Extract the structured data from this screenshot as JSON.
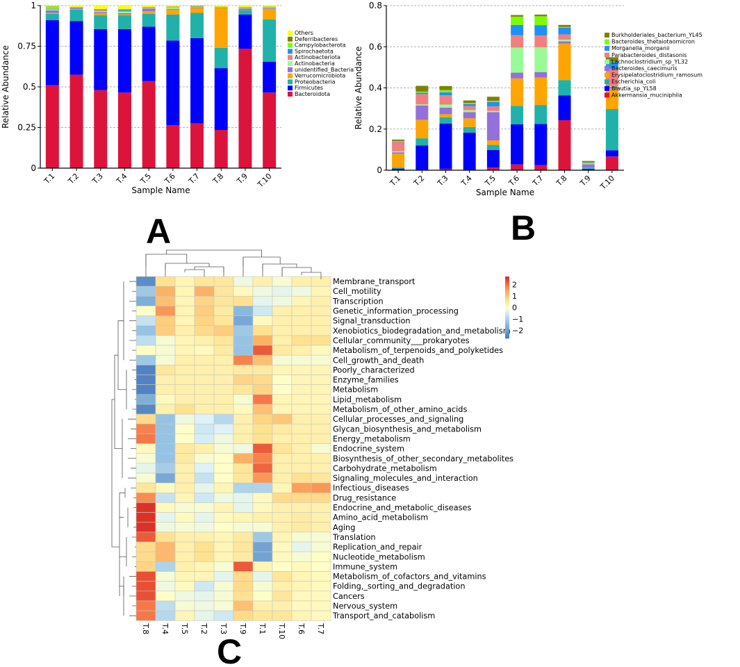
{
  "panels": {
    "a": "A",
    "b": "B",
    "c": "C"
  },
  "chart_data": [
    {
      "type": "bar",
      "stacked": true,
      "xlabel": "Sample Name",
      "ylabel": "Relative Abundance",
      "ylim": [
        0,
        1
      ],
      "yticks": [
        0,
        0.25,
        0.5,
        0.75,
        1
      ],
      "ytick_labels": [
        "0",
        "0.25",
        "0.5",
        "0.75",
        "1"
      ],
      "grid": "dashed horizontal",
      "legend_position": "right",
      "categories": [
        "T.1",
        "T.2",
        "T.3",
        "T.4",
        "T.5",
        "T.6",
        "T.7",
        "T.8",
        "T.9",
        "T.10"
      ],
      "series": [
        {
          "name": "Bacteroidota",
          "color": "#dc143c",
          "values": [
            0.51,
            0.575,
            0.48,
            0.465,
            0.535,
            0.265,
            0.275,
            0.235,
            0.735,
            0.465
          ]
        },
        {
          "name": "Firmicutes",
          "color": "#0000ff",
          "values": [
            0.4,
            0.33,
            0.375,
            0.39,
            0.335,
            0.52,
            0.525,
            0.38,
            0.21,
            0.19
          ]
        },
        {
          "name": "Proteobacteria",
          "color": "#20b2aa",
          "values": [
            0.04,
            0.07,
            0.085,
            0.085,
            0.08,
            0.16,
            0.155,
            0.125,
            0.025,
            0.26
          ]
        },
        {
          "name": "Verrucomicrobiota",
          "color": "#ffa500",
          "values": [
            0.005,
            0.003,
            0.012,
            0.006,
            0.015,
            0.03,
            0.03,
            0.245,
            0.002,
            0.065
          ]
        },
        {
          "name": "unidentified_Bacteria",
          "color": "#9370db",
          "values": [
            0.015,
            0.008,
            0.008,
            0.008,
            0.017,
            0.005,
            0.004,
            0.002,
            0.01,
            0.005
          ]
        },
        {
          "name": "Actinobacteria",
          "color": "#98fb98",
          "values": [
            0.005,
            0.002,
            0.005,
            0.008,
            0.003,
            0.008,
            0.003,
            0.002,
            0.004,
            0.005
          ]
        },
        {
          "name": "Actinobacteriota",
          "color": "#f08080",
          "values": [
            0.005,
            0.001,
            0.005,
            0.004,
            0.003,
            0.002,
            0.001,
            0.001,
            0.001,
            0.001
          ]
        },
        {
          "name": "Spirochaetota",
          "color": "#1e90ff",
          "values": [
            0.002,
            0.001,
            0.003,
            0.007,
            0.001,
            0.001,
            0.001,
            0.001,
            0.001,
            0.001
          ]
        },
        {
          "name": "Campylobacterota",
          "color": "#7cfc00",
          "values": [
            0.013,
            0.001,
            0.004,
            0.004,
            0.002,
            0.001,
            0.001,
            0.001,
            0.001,
            0.001
          ]
        },
        {
          "name": "Deferribacteres",
          "color": "#808000",
          "values": [
            0.002,
            0.001,
            0.002,
            0.002,
            0.001,
            0.002,
            0.003,
            0.001,
            0.002,
            0.001
          ]
        },
        {
          "name": "Others",
          "color": "#ffff00",
          "values": [
            0.003,
            0.008,
            0.021,
            0.021,
            0.008,
            0.006,
            0.002,
            0.007,
            0.009,
            0.006
          ]
        }
      ]
    },
    {
      "type": "bar",
      "stacked": true,
      "xlabel": "Sample Name",
      "ylabel": "Relative Abundance",
      "ylim": [
        0,
        0.8
      ],
      "yticks": [
        0,
        0.2,
        0.4,
        0.6,
        0.8
      ],
      "ytick_labels": [
        "0",
        "0.2",
        "0.4",
        "0.6",
        "0.8"
      ],
      "grid": "dashed horizontal",
      "legend_position": "right",
      "categories": [
        "T.1",
        "T.2",
        "T.3",
        "T.4",
        "T.5",
        "T.6",
        "T.7",
        "T.8",
        "T.9",
        "T.10"
      ],
      "series": [
        {
          "name": "Akkermansia_muciniphila",
          "color": "#dc143c",
          "values": [
            0,
            0,
            0.007,
            0,
            0.013,
            0.028,
            0.025,
            0.243,
            0,
            0.067
          ]
        },
        {
          "name": "Blautia_sp_YL58",
          "color": "#0000ff",
          "values": [
            0.008,
            0.12,
            0.22,
            0.183,
            0.085,
            0.195,
            0.2,
            0.12,
            0.006,
            0.03
          ]
        },
        {
          "name": "Escherichia_coli",
          "color": "#20b2aa",
          "values": [
            0.005,
            0.035,
            0.03,
            0.027,
            0.025,
            0.09,
            0.092,
            0.075,
            0.004,
            0.2
          ]
        },
        {
          "name": "Erysipelatoclostridium_ramosum",
          "color": "#ffa500",
          "values": [
            0.068,
            0.09,
            0.015,
            0.042,
            0.022,
            0.133,
            0.133,
            0.178,
            0.001,
            0.1
          ]
        },
        {
          "name": "Bacteroides_caecimuris",
          "color": "#9370db",
          "values": [
            0.006,
            0.07,
            0.032,
            0.03,
            0.137,
            0.028,
            0.027,
            0.01,
            0.018,
            0.008
          ]
        },
        {
          "name": "Lachnoclostridium_sp_YL32",
          "color": "#98fb98",
          "values": [
            0.005,
            0.005,
            0.015,
            0.01,
            0.006,
            0.122,
            0.12,
            0.008,
            0.004,
            0.003
          ]
        },
        {
          "name": "Parabacteroides_distasonis",
          "color": "#f08080",
          "values": [
            0.045,
            0.05,
            0.045,
            0.02,
            0.022,
            0.06,
            0.058,
            0.026,
            0.002,
            0.085
          ]
        },
        {
          "name": "Morganella_morganii",
          "color": "#1e90ff",
          "values": [
            0.002,
            0.007,
            0.015,
            0.01,
            0.022,
            0.05,
            0.05,
            0.032,
            0.002,
            0.032
          ]
        },
        {
          "name": "Bacteroides_thetaiotaomicron",
          "color": "#7cfc00",
          "values": [
            0.003,
            0.005,
            0.01,
            0.005,
            0.005,
            0.04,
            0.043,
            0.004,
            0.002,
            0.002
          ]
        },
        {
          "name": "Burkholderiales_bacterium_YL45",
          "color": "#808000",
          "values": [
            0.007,
            0.028,
            0.02,
            0.012,
            0.02,
            0.008,
            0.008,
            0.01,
            0.006,
            0.022
          ]
        }
      ]
    },
    {
      "type": "heatmap",
      "columns": [
        "T.8",
        "T.4",
        "T.5",
        "T.2",
        "T.3",
        "T.9",
        "T.1",
        "T.10",
        "T.6",
        "T.7"
      ],
      "rows": [
        "Membrane_transport",
        "Cell_motility",
        "Transcription",
        "Genetic_information_processing",
        "Signal_transduction",
        "Xenobiotics_biodegradation_and_metabolism",
        "Cellular_community___prokaryotes",
        "Metabolism_of_terpenoids_and_polyketides",
        "Cell_growth_and_death",
        "Poorly_characterized",
        "Enzyme_families",
        "Metabolism",
        "Lipid_metabolism",
        "Metabolism_of_other_amino_acids",
        "Cellular_processes_and_signaling",
        "Glycan_biosynthesis_and_metabolism",
        "Energy_metabolism",
        "Endocrine_system",
        "Biosynthesis_of_other_secondary_metabolites",
        "Carbohydrate_metabolism",
        "Signaling_molecules_and_interaction",
        "Infectious_diseases",
        "Drug_resistance",
        "Endocrine_and_metabolic_diseases",
        "Amino_acid_metabolism",
        "Aging",
        "Translation",
        "Replication_and_repair",
        "Nucleotide_metabolism",
        "Immune_system",
        "Metabolism_of_cofactors_and_vitamins",
        "Folding,_sorting_and_degradation",
        "Cancers",
        "Nervous_system",
        "Transport_and_catabolism"
      ],
      "values": [
        [
          -2.3,
          0.6,
          0.2,
          0.5,
          0.5,
          -0.2,
          0.3,
          -0.1,
          0.3,
          0.3
        ],
        [
          -1.2,
          1.3,
          0.2,
          1.3,
          0.5,
          0.1,
          -0.2,
          -0.3,
          -0.2,
          0.2
        ],
        [
          -1.7,
          1.1,
          0.2,
          0.8,
          0.5,
          0.6,
          -0.3,
          -0.2,
          0.2,
          0.3
        ],
        [
          0,
          1.6,
          0.2,
          0.9,
          0.4,
          -1.5,
          -0.6,
          0.3,
          0.3,
          0.3
        ],
        [
          -0.7,
          0.9,
          0.2,
          0.8,
          0.5,
          -1.8,
          0.1,
          0.3,
          0.3,
          0.3
        ],
        [
          -1.3,
          0.9,
          0.3,
          0.7,
          0.9,
          -1.2,
          0.6,
          0.3,
          0.3,
          0.3
        ],
        [
          -0.8,
          -0.1,
          0.2,
          0.3,
          0.5,
          -1.3,
          1.3,
          0.3,
          0.6,
          0.6
        ],
        [
          0,
          -0.1,
          0.2,
          0.1,
          0.4,
          -1.3,
          2.2,
          0.4,
          0.3,
          0.1
        ],
        [
          -1.2,
          -0.1,
          0.3,
          0.3,
          0.3,
          1.8,
          1.1,
          -0.1,
          -0.1,
          -0.1
        ],
        [
          -2.5,
          0.5,
          0.3,
          0.3,
          0.3,
          0.4,
          0.4,
          0.2,
          0.2,
          0.2
        ],
        [
          -2.5,
          0.3,
          0.3,
          0.3,
          0.3,
          0.8,
          0.7,
          0,
          0.2,
          0.2
        ],
        [
          -2.5,
          0.3,
          0.3,
          0.3,
          0.3,
          0.5,
          0.8,
          0,
          0.2,
          0.2
        ],
        [
          -1.7,
          0.1,
          0.3,
          0.3,
          0.3,
          -0.1,
          1.9,
          0.2,
          0.2,
          0.2
        ],
        [
          -2.4,
          0.3,
          0.6,
          0.3,
          0.3,
          0.1,
          1.1,
          0.2,
          0.2,
          0.2
        ],
        [
          0.7,
          -1.3,
          -0.2,
          -0.4,
          -0.9,
          0.3,
          0.8,
          1.0,
          0.3,
          0.3
        ],
        [
          1.8,
          -1.3,
          0,
          -0.6,
          -0.4,
          0.3,
          0.6,
          0.4,
          0.3,
          0.3
        ],
        [
          1.9,
          -1.3,
          0,
          -0.5,
          -0.2,
          0.3,
          0.6,
          0.3,
          0.3,
          0.3
        ],
        [
          0.1,
          -1.3,
          0.4,
          0.3,
          -0.1,
          -0.2,
          2.2,
          0.5,
          0.3,
          -0.1
        ],
        [
          -0.1,
          -1.3,
          0.4,
          -0.1,
          0,
          1.3,
          1.8,
          0.3,
          0.3,
          0.3
        ],
        [
          -0.3,
          -1.1,
          0.3,
          -0.4,
          0,
          0.5,
          2.1,
          0.3,
          0.3,
          0.3
        ],
        [
          -0.1,
          -1.8,
          0.3,
          -0.7,
          0,
          0.5,
          1.6,
          0.3,
          0.6,
          0.5
        ],
        [
          0.5,
          0.1,
          0.3,
          -0.3,
          0.2,
          -1.0,
          -1.0,
          0.2,
          1.5,
          1.6
        ],
        [
          1.7,
          -0.7,
          0.2,
          -0.6,
          -0.2,
          -0.3,
          0.1,
          0.7,
          0.7,
          0.7
        ],
        [
          2.6,
          0.1,
          -0.1,
          -0.1,
          0.2,
          -0.3,
          0.1,
          0.3,
          0.3,
          0.3
        ],
        [
          2.6,
          -0.3,
          0.1,
          -0.3,
          0.1,
          0.2,
          0.3,
          0.3,
          0.4,
          0.3
        ],
        [
          2.6,
          -0.2,
          -0.1,
          -0.2,
          0,
          -0.1,
          -0.1,
          0.3,
          0.4,
          0.3
        ],
        [
          2.2,
          0.6,
          0.3,
          0.3,
          0.2,
          0.4,
          -1.2,
          0.2,
          -0.1,
          -0.1
        ],
        [
          0.7,
          1.2,
          0.3,
          0.6,
          0.2,
          0.5,
          -1.9,
          0.1,
          -0.3,
          -0.1
        ],
        [
          0.7,
          1.2,
          0.3,
          0.6,
          0.2,
          0.4,
          -1.9,
          0.1,
          -0.1,
          0
        ],
        [
          0.8,
          -1.0,
          0.3,
          0.2,
          -0.1,
          2.2,
          0.2,
          0,
          0.1,
          0
        ],
        [
          2.3,
          -0.1,
          0.2,
          0.2,
          -0.3,
          0.7,
          -0.3,
          0.5,
          0.2,
          0.1
        ],
        [
          2.3,
          -0.2,
          0.1,
          -0.6,
          -0.1,
          0.7,
          -0.1,
          0.3,
          0.2,
          0.1
        ],
        [
          2.3,
          0,
          -0.2,
          -0.3,
          -0.1,
          0.6,
          0,
          0.5,
          0.1,
          0.1
        ],
        [
          1.9,
          -0.8,
          -0.1,
          -0.2,
          -0.1,
          1.1,
          0.3,
          0.3,
          0.1,
          0.1
        ],
        [
          1.9,
          -0.9,
          0.2,
          -0.3,
          -0.6,
          0.7,
          0.5,
          0.5,
          0.2,
          0.1
        ]
      ],
      "colorbar": {
        "ticks": [
          2,
          1,
          0,
          -1,
          -2
        ],
        "tick_labels": [
          "2",
          "1",
          "0",
          "−1",
          "−2"
        ],
        "range": [
          -2.7,
          2.7
        ]
      }
    }
  ]
}
